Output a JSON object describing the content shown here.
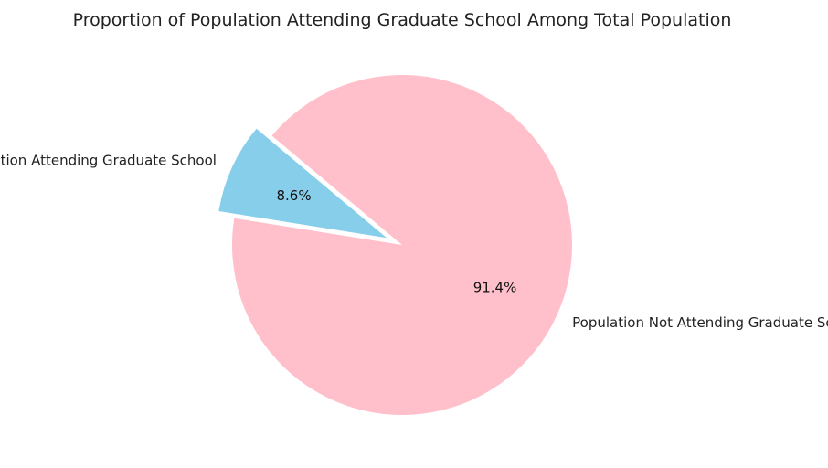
{
  "chart_data": {
    "type": "pie",
    "title": "Proportion of Population Attending Graduate School Among Total Population",
    "labels": [
      "Population Attending Graduate School",
      "Population Not Attending Graduate School"
    ],
    "values": [
      8.6,
      91.4
    ],
    "pct_labels": [
      "8.6%",
      "91.4%"
    ],
    "colors": [
      "#87CEEB",
      "#FFC0CB"
    ],
    "explode": [
      0.1,
      0
    ],
    "start_angle_deg": 140,
    "counterclock": true
  }
}
